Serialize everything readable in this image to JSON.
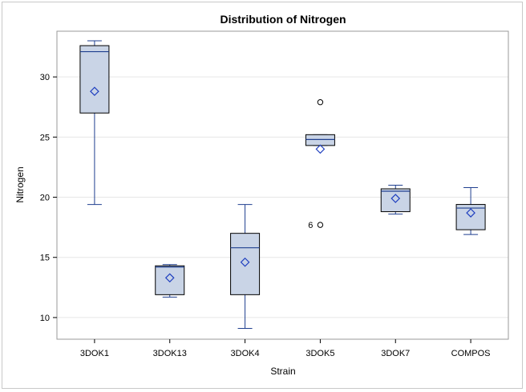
{
  "chart_data": {
    "type": "box",
    "title": "Distribution of Nitrogen",
    "xlabel": "Strain",
    "ylabel": "Nitrogen",
    "ylim": [
      8.2,
      33.8
    ],
    "yticks": [
      10,
      15,
      20,
      25,
      30
    ],
    "grid": "horizontal",
    "categories": [
      "3DOK1",
      "3DOK13",
      "3DOK4",
      "3DOK5",
      "3DOK7",
      "COMPOS"
    ],
    "boxes": [
      {
        "category": "3DOK1",
        "min": 19.4,
        "q1": 27.0,
        "median": 32.1,
        "q3": 32.6,
        "max": 33.0,
        "mean": 28.8,
        "outliers": []
      },
      {
        "category": "3DOK13",
        "min": 11.7,
        "q1": 11.9,
        "median": 14.2,
        "q3": 14.3,
        "max": 14.4,
        "mean": 13.3,
        "outliers": []
      },
      {
        "category": "3DOK4",
        "min": 9.1,
        "q1": 11.9,
        "median": 15.8,
        "q3": 17.0,
        "max": 19.4,
        "mean": 14.6,
        "outliers": []
      },
      {
        "category": "3DOK5",
        "min": 24.3,
        "q1": 24.3,
        "median": 24.8,
        "q3": 25.2,
        "max": 25.2,
        "mean": 24.0,
        "outliers": [
          {
            "value": 27.9,
            "label": ""
          },
          {
            "value": 17.7,
            "label": "6"
          }
        ]
      },
      {
        "category": "3DOK7",
        "min": 18.6,
        "q1": 18.8,
        "median": 20.5,
        "q3": 20.7,
        "max": 21.0,
        "mean": 19.9,
        "outliers": []
      },
      {
        "category": "COMPOS",
        "min": 16.9,
        "q1": 17.3,
        "median": 19.1,
        "q3": 19.4,
        "max": 20.8,
        "mean": 18.7,
        "outliers": []
      }
    ],
    "colors": {
      "box_fill": "#c9d4e6",
      "box_border": "#000000",
      "whisker": "#1f3f8f",
      "median": "#1f3f8f",
      "mean_marker": "#1f3fbf",
      "grid": "#e6e6e6",
      "plot_border": "#9a9a9a"
    }
  }
}
